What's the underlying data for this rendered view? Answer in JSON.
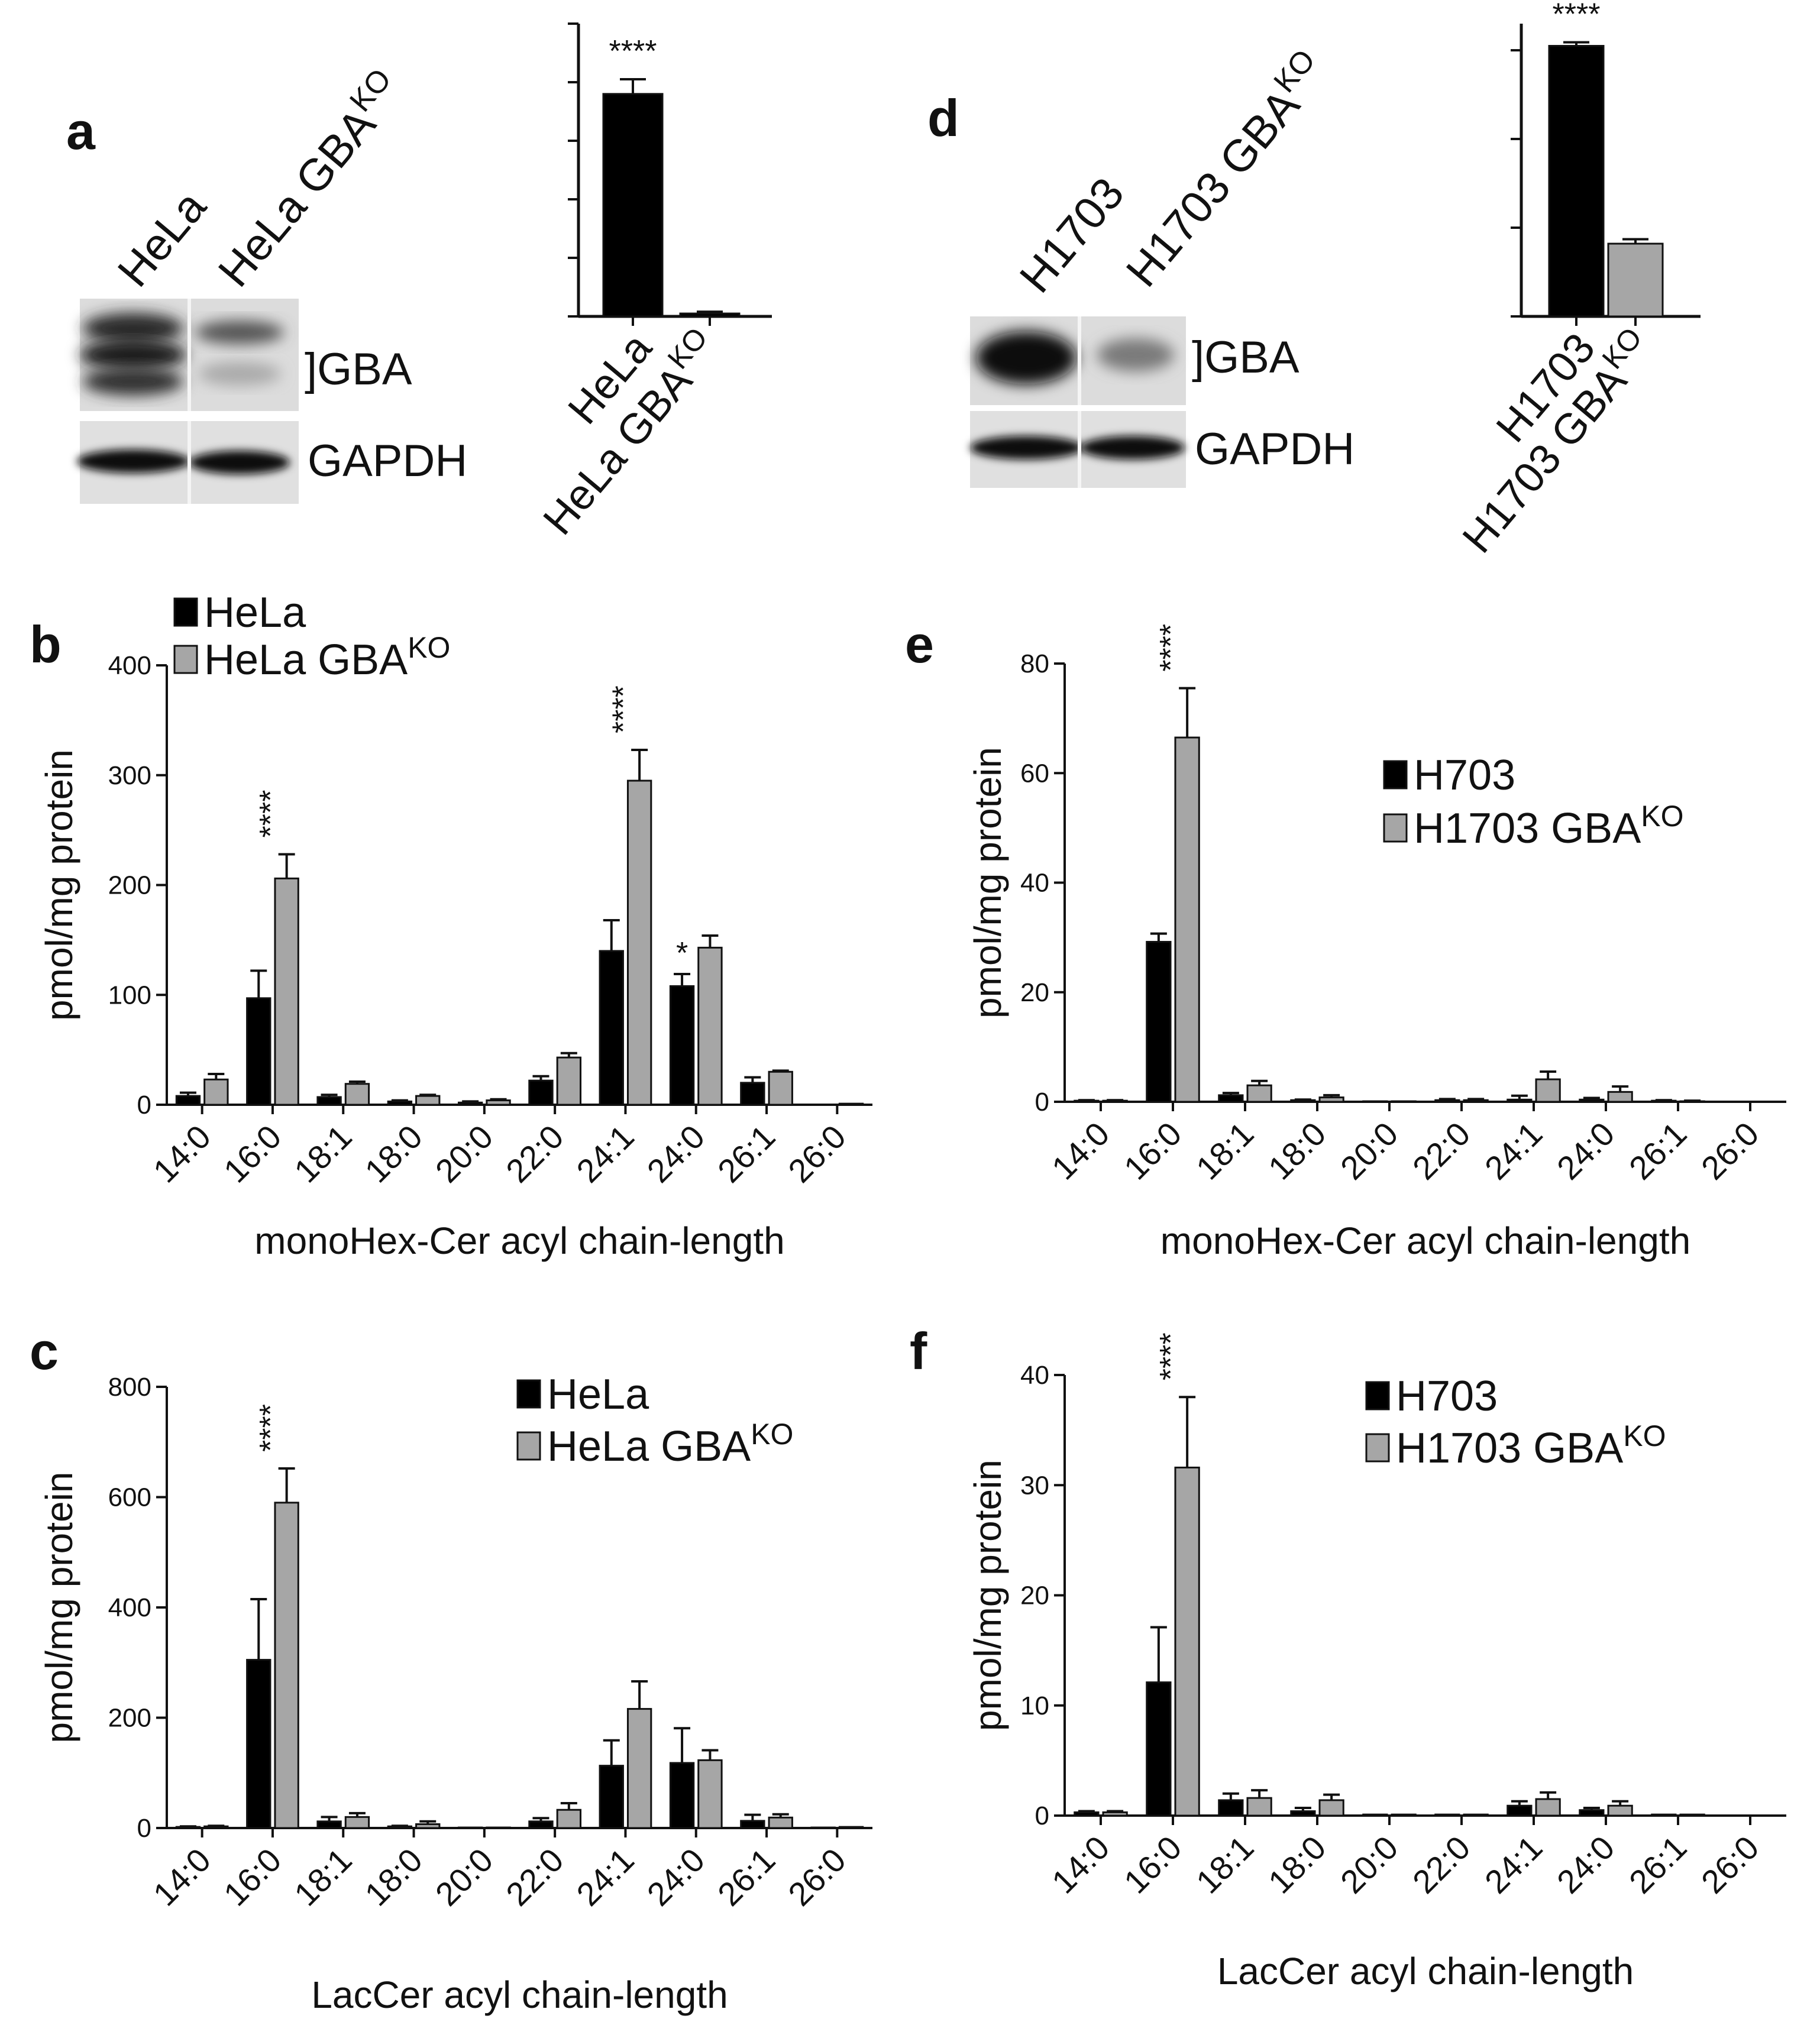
{
  "panels": {
    "a": {
      "letter": "a",
      "lane_labels": [
        "HeLa",
        "HeLa GBA",
        "KO"
      ],
      "blot_labels": [
        "]GBA",
        "GAPDH"
      ],
      "significance": "****"
    },
    "d": {
      "letter": "d",
      "lane_labels": [
        "H1703",
        "H1703 GBA",
        "KO"
      ],
      "blot_labels": [
        "]GBA",
        "GAPDH"
      ],
      "significance": "****"
    },
    "b": {
      "letter": "b"
    },
    "c": {
      "letter": "c"
    },
    "e": {
      "letter": "e"
    },
    "f": {
      "letter": "f"
    }
  },
  "chart_data": [
    {
      "id": "a_quant",
      "type": "bar",
      "categories": [
        "HeLa",
        "HeLa GBA^KO"
      ],
      "category_text": [
        "HeLa",
        "HeLa GBA"
      ],
      "category_sup": [
        "",
        "KO"
      ],
      "values": [
        3.8,
        0.05
      ],
      "errors": [
        0.25,
        0.03
      ],
      "colors": [
        "#000000",
        "#000000"
      ],
      "ylim": [
        0,
        5
      ],
      "yticks": [
        0,
        1,
        2,
        3,
        4,
        5
      ],
      "show_tick_labels": false,
      "significance": [
        "****"
      ],
      "sig_index": [
        0
      ]
    },
    {
      "id": "d_quant",
      "type": "bar",
      "categories": [
        "H1703",
        "H1703 GBA^KO"
      ],
      "category_text": [
        "H1703",
        "H1703 GBA"
      ],
      "category_sup": [
        "",
        "KO"
      ],
      "values": [
        3.05,
        0.82
      ],
      "errors": [
        0.04,
        0.05
      ],
      "colors": [
        "#000000",
        "#a6a6a6"
      ],
      "ylim": [
        0,
        3.3
      ],
      "yticks": [
        0,
        1,
        2,
        3
      ],
      "show_tick_labels": false,
      "significance": [
        "****"
      ],
      "sig_index": [
        0
      ]
    },
    {
      "id": "b",
      "type": "bar",
      "categories": [
        "14:0",
        "16:0",
        "18:1",
        "18:0",
        "20:0",
        "22:0",
        "24:1",
        "24:0",
        "26:1",
        "26:0"
      ],
      "xlabel": "monoHex-Cer acyl chain-length",
      "ylabel": "pmol/mg protein",
      "ylim": [
        0,
        400
      ],
      "yticks": [
        0,
        100,
        200,
        300,
        400
      ],
      "legend_position": "top-left",
      "series": [
        {
          "name": "HeLa",
          "name_sup": "",
          "color": "#000000",
          "values": [
            8,
            97,
            7,
            3,
            2,
            22,
            140,
            108,
            20,
            0
          ],
          "errors": [
            3,
            25,
            2,
            1,
            1,
            4,
            28,
            11,
            5,
            0
          ]
        },
        {
          "name": "HeLa GBA",
          "name_sup": "KO",
          "color": "#a6a6a6",
          "values": [
            23,
            206,
            19,
            8,
            4,
            43,
            295,
            143,
            30,
            1
          ],
          "errors": [
            5,
            22,
            2,
            1,
            1,
            4,
            28,
            11,
            1,
            0
          ]
        }
      ],
      "annotations": [
        {
          "category": "16:0",
          "text": "****",
          "vertical": true
        },
        {
          "category": "24:1",
          "text": "****",
          "vertical": true
        },
        {
          "category": "24:0",
          "text": "*",
          "vertical": false
        }
      ]
    },
    {
      "id": "c",
      "type": "bar",
      "categories": [
        "14:0",
        "16:0",
        "18:1",
        "18:0",
        "20:0",
        "22:0",
        "24:1",
        "24:0",
        "26:1",
        "26:0"
      ],
      "xlabel": "LacCer acyl chain-length",
      "ylabel": "pmol/mg protein",
      "ylim": [
        0,
        800
      ],
      "yticks": [
        0,
        200,
        400,
        600,
        800
      ],
      "legend_position": "top-right",
      "series": [
        {
          "name": "HeLa",
          "name_sup": "",
          "color": "#000000",
          "values": [
            2,
            305,
            12,
            3,
            1,
            12,
            113,
            118,
            13,
            1
          ],
          "errors": [
            1,
            110,
            8,
            1,
            0,
            6,
            46,
            63,
            11,
            0
          ]
        },
        {
          "name": "HeLa GBA",
          "name_sup": "KO",
          "color": "#a6a6a6",
          "values": [
            3,
            590,
            20,
            7,
            1,
            33,
            216,
            123,
            19,
            2
          ],
          "errors": [
            1,
            62,
            7,
            5,
            0,
            12,
            50,
            18,
            6,
            0
          ]
        }
      ],
      "annotations": [
        {
          "category": "16:0",
          "text": "****",
          "vertical": true
        }
      ]
    },
    {
      "id": "e",
      "type": "bar",
      "categories": [
        "14:0",
        "16:0",
        "18:1",
        "18:0",
        "20:0",
        "22:0",
        "24:1",
        "24:0",
        "26:1",
        "26:0"
      ],
      "xlabel": "monoHex-Cer acyl chain-length",
      "ylabel": "pmol/mg protein",
      "ylim": [
        0,
        80
      ],
      "yticks": [
        0,
        20,
        40,
        60,
        80
      ],
      "legend_position": "top-right",
      "series": [
        {
          "name": "H703",
          "name_sup": "",
          "color": "#000000",
          "values": [
            0.2,
            29.2,
            1.2,
            0.3,
            0.1,
            0.3,
            0.4,
            0.4,
            0.2,
            0
          ],
          "errors": [
            0.1,
            1.5,
            0.4,
            0.1,
            0,
            0.2,
            0.7,
            0.3,
            0.1,
            0
          ]
        },
        {
          "name": "H1703 GBA",
          "name_sup": "KO",
          "color": "#a6a6a6",
          "values": [
            0.2,
            66.5,
            3.0,
            0.8,
            0.1,
            0.3,
            4.1,
            1.8,
            0.1,
            0
          ],
          "errors": [
            0.1,
            9.0,
            0.8,
            0.4,
            0,
            0.2,
            1.4,
            1.0,
            0.1,
            0
          ]
        }
      ],
      "annotations": [
        {
          "category": "16:0",
          "text": "****",
          "vertical": true
        }
      ]
    },
    {
      "id": "f",
      "type": "bar",
      "categories": [
        "14:0",
        "16:0",
        "18:1",
        "18:0",
        "20:0",
        "22:0",
        "24:1",
        "24:0",
        "26:1",
        "26:0"
      ],
      "xlabel": "LacCer acyl chain-length",
      "ylabel": "pmol/mg protein",
      "ylim": [
        0,
        40
      ],
      "yticks": [
        0,
        10,
        20,
        30,
        40
      ],
      "legend_position": "top-right",
      "series": [
        {
          "name": "H703",
          "name_sup": "",
          "color": "#000000",
          "values": [
            0.3,
            12.1,
            1.4,
            0.4,
            0.1,
            0.1,
            0.9,
            0.5,
            0.1,
            0
          ],
          "errors": [
            0.1,
            5.0,
            0.6,
            0.3,
            0,
            0,
            0.4,
            0.2,
            0,
            0
          ]
        },
        {
          "name": "H1703 GBA",
          "name_sup": "KO",
          "color": "#a6a6a6",
          "values": [
            0.3,
            31.6,
            1.6,
            1.4,
            0.1,
            0.1,
            1.5,
            0.9,
            0.1,
            0
          ],
          "errors": [
            0.1,
            6.4,
            0.7,
            0.5,
            0,
            0,
            0.6,
            0.4,
            0,
            0
          ]
        }
      ],
      "annotations": [
        {
          "category": "16:0",
          "text": "****",
          "vertical": true
        }
      ]
    }
  ]
}
